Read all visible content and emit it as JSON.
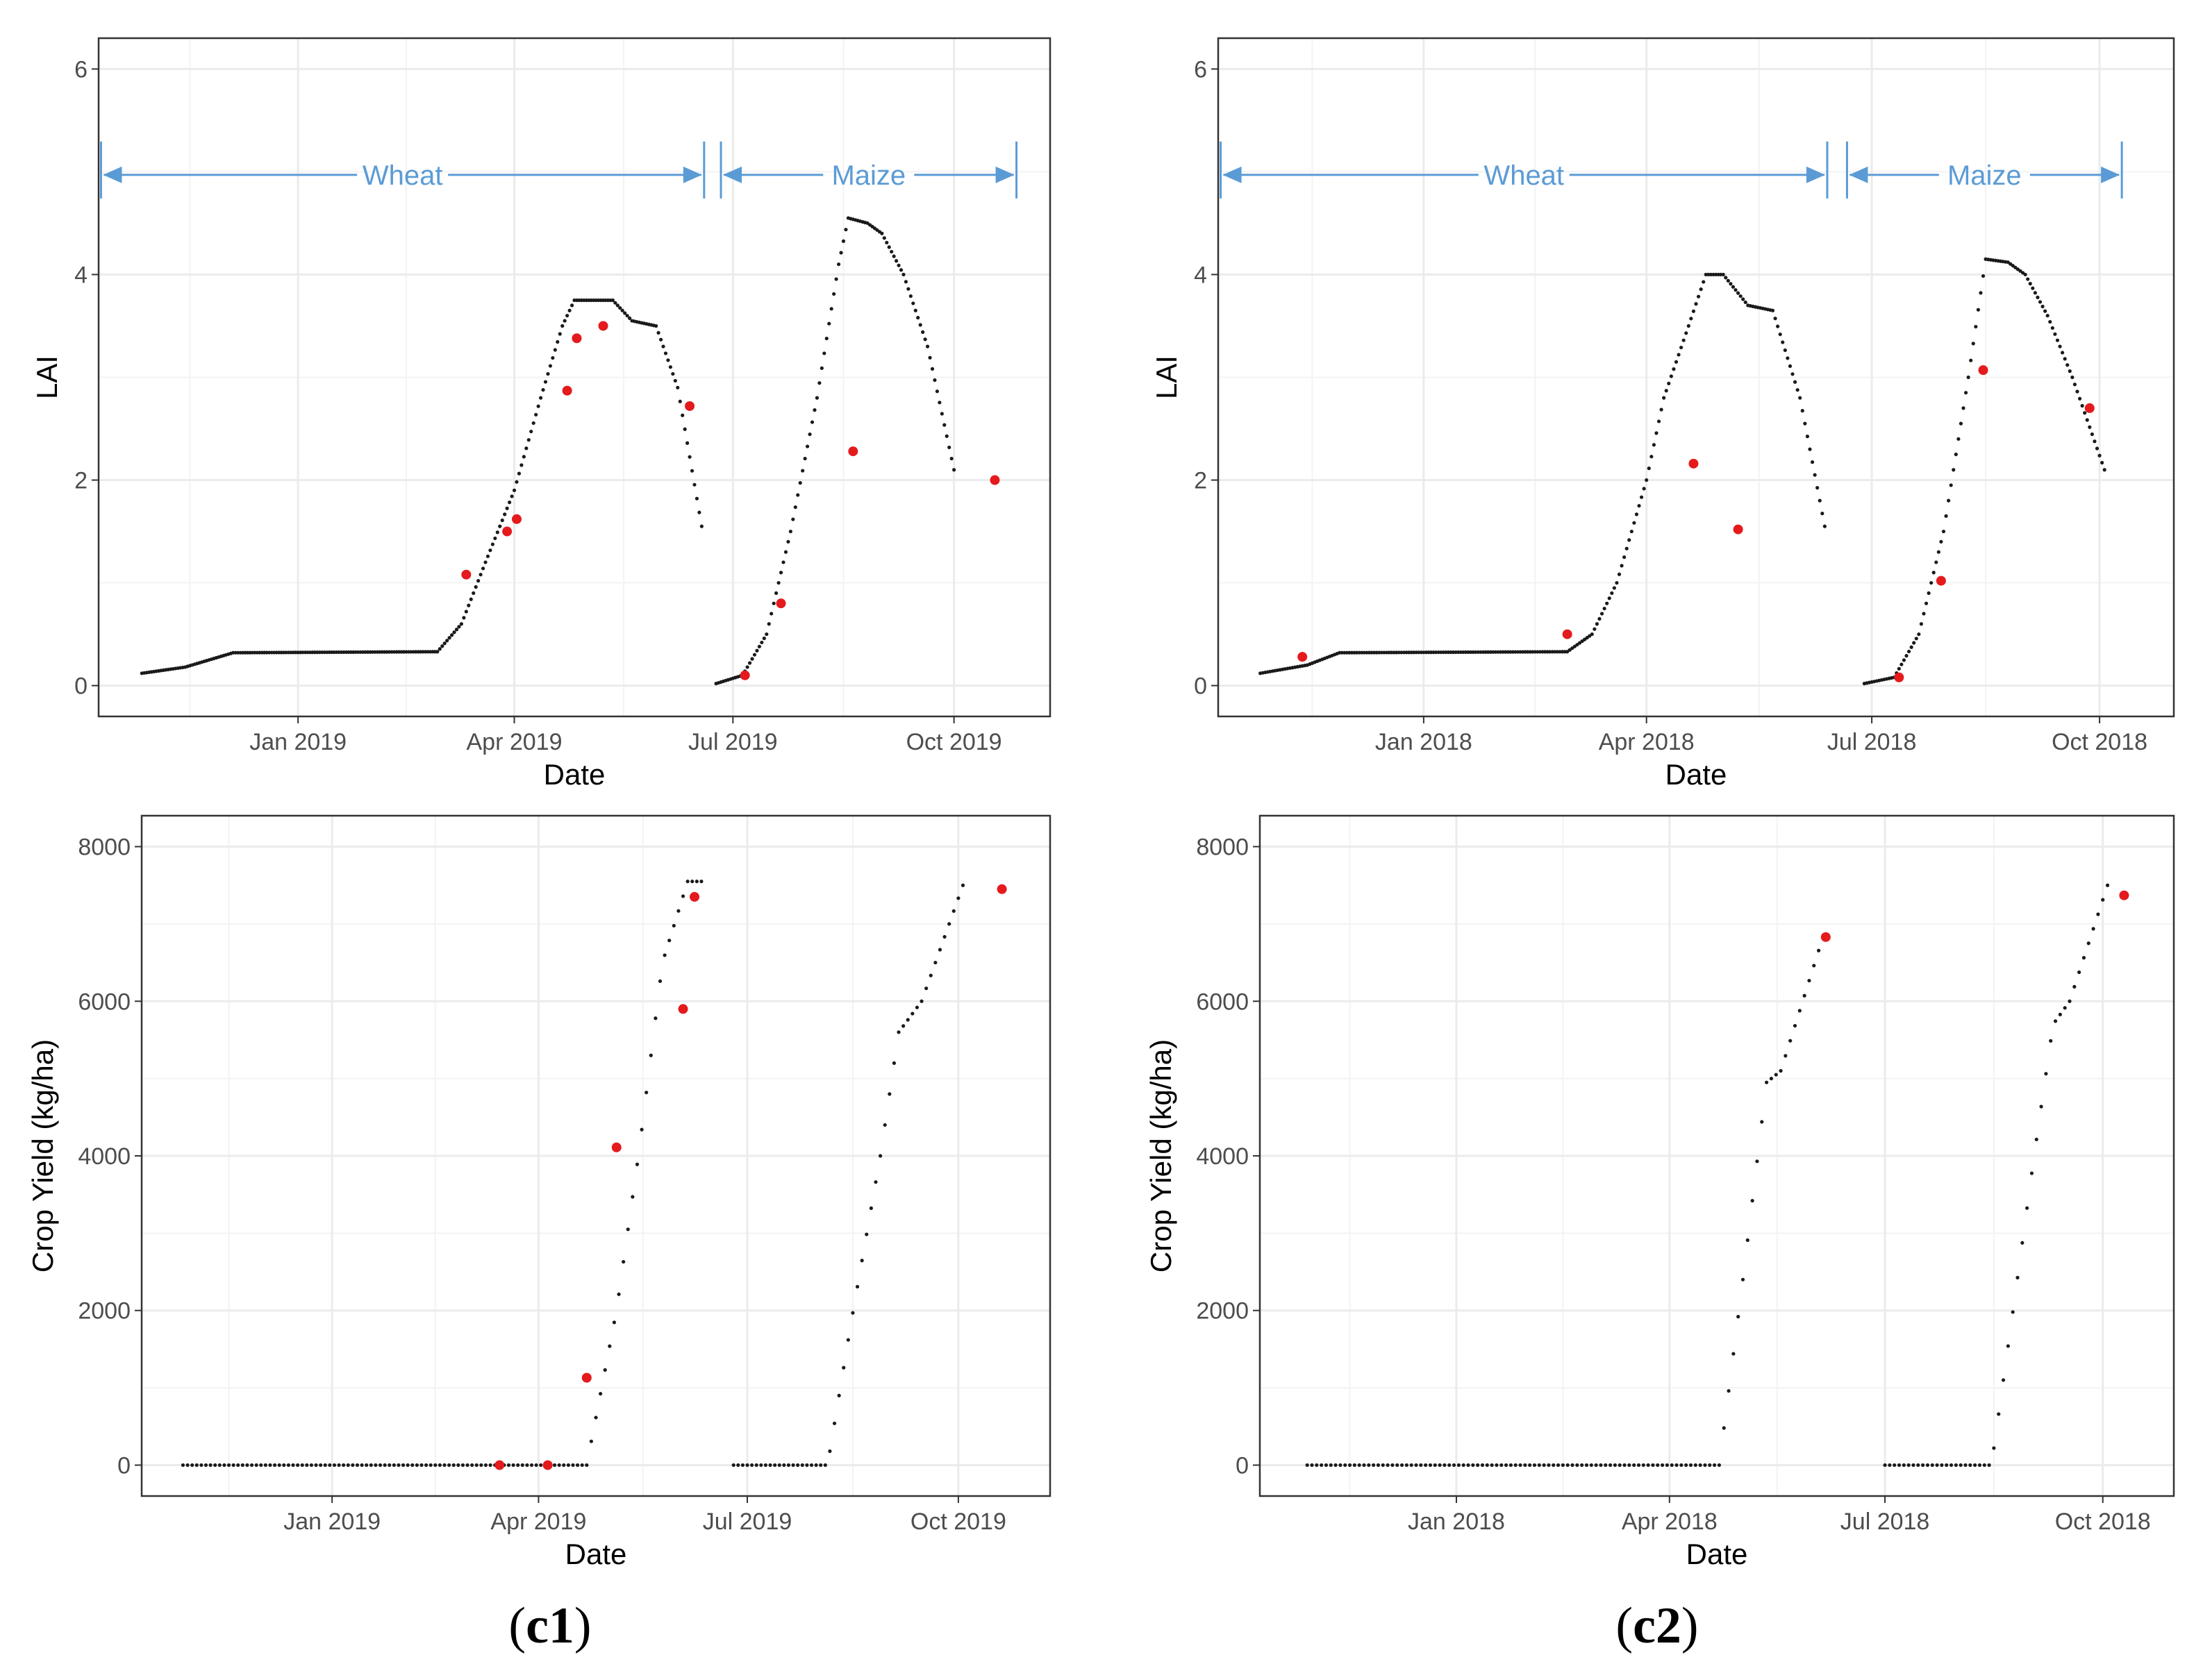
{
  "figure": {
    "captions": [
      {
        "open": "(",
        "label": "c1",
        "close": ")"
      },
      {
        "open": "(",
        "label": "c2",
        "close": ")"
      }
    ],
    "colors": {
      "sim": "#1a1a1a",
      "obs": "#e41a1c",
      "arrow": "#5b9bd5",
      "grid": "#ebebeb",
      "frame": "#333333",
      "axis_text": "#4d4d4d"
    }
  },
  "chart_data": [
    {
      "id": "lai-2019",
      "type": "scatter",
      "panel": "c1",
      "xlabel": "Date",
      "ylabel": "LAI",
      "ylim": [
        -0.3,
        6.3
      ],
      "yticks": [
        0,
        2,
        4,
        6
      ],
      "x_domain": [
        "2018-10-10",
        "2019-11-10"
      ],
      "xticks": [
        {
          "date": "2019-01-01",
          "label": "Jan 2019"
        },
        {
          "date": "2019-04-01",
          "label": "Apr 2019"
        },
        {
          "date": "2019-07-01",
          "label": "Jul 2019"
        },
        {
          "date": "2019-10-01",
          "label": "Oct 2019"
        }
      ],
      "seasons": [
        {
          "label": "Wheat",
          "start": "2018-10-11",
          "end": "2019-06-19",
          "level": 4.97
        },
        {
          "label": "Maize",
          "start": "2019-06-26",
          "end": "2019-10-27",
          "level": 4.97
        }
      ],
      "simulated": [
        {
          "start": "2018-10-28",
          "end": "2019-06-18",
          "step": 1,
          "points": [
            [
              "2018-10-28",
              0.12
            ],
            [
              "2018-11-15",
              0.18
            ],
            [
              "2018-12-05",
              0.32
            ],
            [
              "2019-02-28",
              0.33
            ],
            [
              "2019-03-10",
              0.6
            ],
            [
              "2019-03-20",
              1.2
            ],
            [
              "2019-04-01",
              1.9
            ],
            [
              "2019-04-12",
              2.8
            ],
            [
              "2019-04-21",
              3.5
            ],
            [
              "2019-04-26",
              3.75
            ],
            [
              "2019-05-12",
              3.75
            ],
            [
              "2019-05-20",
              3.55
            ],
            [
              "2019-05-30",
              3.5
            ],
            [
              "2019-06-08",
              2.9
            ],
            [
              "2019-06-18",
              1.55
            ]
          ]
        },
        {
          "start": "2019-06-24",
          "end": "2019-10-01",
          "step": 1,
          "points": [
            [
              "2019-06-24",
              0.02
            ],
            [
              "2019-07-05",
              0.1
            ],
            [
              "2019-07-15",
              0.5
            ],
            [
              "2019-07-25",
              1.5
            ],
            [
              "2019-08-05",
              2.8
            ],
            [
              "2019-08-14",
              4.1
            ],
            [
              "2019-08-18",
              4.55
            ],
            [
              "2019-08-26",
              4.5
            ],
            [
              "2019-09-01",
              4.4
            ],
            [
              "2019-09-10",
              4.0
            ],
            [
              "2019-09-20",
              3.3
            ],
            [
              "2019-10-01",
              2.1
            ]
          ]
        }
      ],
      "observed": [
        [
          "2019-03-12",
          1.08
        ],
        [
          "2019-03-29",
          1.5
        ],
        [
          "2019-04-02",
          1.62
        ],
        [
          "2019-04-23",
          2.87
        ],
        [
          "2019-04-27",
          3.38
        ],
        [
          "2019-05-08",
          3.5
        ],
        [
          "2019-06-13",
          2.72
        ],
        [
          "2019-07-06",
          0.1
        ],
        [
          "2019-07-21",
          0.8
        ],
        [
          "2019-08-20",
          2.28
        ],
        [
          "2019-10-18",
          2.0
        ]
      ]
    },
    {
      "id": "lai-2018",
      "type": "scatter",
      "panel": "c2",
      "xlabel": "Date",
      "ylabel": "LAI",
      "ylim": [
        -0.3,
        6.3
      ],
      "yticks": [
        0,
        2,
        4,
        6
      ],
      "x_domain": [
        "2017-10-10",
        "2018-10-31"
      ],
      "xticks": [
        {
          "date": "2018-01-01",
          "label": "Jan 2018"
        },
        {
          "date": "2018-04-01",
          "label": "Apr 2018"
        },
        {
          "date": "2018-07-01",
          "label": "Jul 2018"
        },
        {
          "date": "2018-10-01",
          "label": "Oct 2018"
        }
      ],
      "seasons": [
        {
          "label": "Wheat",
          "start": "2017-10-11",
          "end": "2018-06-13",
          "level": 4.97
        },
        {
          "label": "Maize",
          "start": "2018-06-21",
          "end": "2018-10-10",
          "level": 4.97
        }
      ],
      "simulated": [
        {
          "start": "2017-10-27",
          "end": "2018-06-12",
          "step": 1,
          "points": [
            [
              "2017-10-27",
              0.12
            ],
            [
              "2017-11-15",
              0.2
            ],
            [
              "2017-11-28",
              0.32
            ],
            [
              "2018-02-28",
              0.33
            ],
            [
              "2018-03-10",
              0.5
            ],
            [
              "2018-03-20",
              1.0
            ],
            [
              "2018-04-01",
              2.0
            ],
            [
              "2018-04-08",
              2.8
            ],
            [
              "2018-04-18",
              3.5
            ],
            [
              "2018-04-25",
              4.0
            ],
            [
              "2018-05-02",
              4.0
            ],
            [
              "2018-05-12",
              3.7
            ],
            [
              "2018-05-22",
              3.65
            ],
            [
              "2018-06-02",
              2.8
            ],
            [
              "2018-06-12",
              1.55
            ]
          ]
        },
        {
          "start": "2018-06-28",
          "end": "2018-10-03",
          "step": 1,
          "points": [
            [
              "2018-06-28",
              0.02
            ],
            [
              "2018-07-10",
              0.08
            ],
            [
              "2018-07-20",
              0.5
            ],
            [
              "2018-07-30",
              1.5
            ],
            [
              "2018-08-09",
              3.0
            ],
            [
              "2018-08-16",
              4.15
            ],
            [
              "2018-08-25",
              4.12
            ],
            [
              "2018-09-01",
              4.0
            ],
            [
              "2018-09-10",
              3.6
            ],
            [
              "2018-09-20",
              3.0
            ],
            [
              "2018-10-03",
              2.1
            ]
          ]
        }
      ],
      "observed": [
        [
          "2017-11-13",
          0.28
        ],
        [
          "2018-02-28",
          0.5
        ],
        [
          "2018-04-20",
          2.16
        ],
        [
          "2018-05-08",
          1.52
        ],
        [
          "2018-07-12",
          0.08
        ],
        [
          "2018-07-29",
          1.02
        ],
        [
          "2018-08-15",
          3.07
        ],
        [
          "2018-09-27",
          2.7
        ]
      ]
    },
    {
      "id": "yield-2019",
      "type": "scatter",
      "panel": "c1",
      "xlabel": "Date",
      "ylabel": "Crop Yield (kg/ha)",
      "ylim": [
        -400,
        8400
      ],
      "yticks": [
        0,
        2000,
        4000,
        6000,
        8000
      ],
      "x_domain": [
        "2018-10-10",
        "2019-11-10"
      ],
      "xticks": [
        {
          "date": "2019-01-01",
          "label": "Jan 2019"
        },
        {
          "date": "2019-04-01",
          "label": "Apr 2019"
        },
        {
          "date": "2019-07-01",
          "label": "Jul 2019"
        },
        {
          "date": "2019-10-01",
          "label": "Oct 2019"
        }
      ],
      "simulated": [
        {
          "start": "2018-10-28",
          "end": "2019-06-11",
          "step": 2,
          "points": [
            [
              "2018-10-28",
              0
            ],
            [
              "2019-04-22",
              0
            ],
            [
              "2019-05-05",
              2000
            ],
            [
              "2019-05-15",
              4100
            ],
            [
              "2019-05-25",
              6500
            ],
            [
              "2019-06-05",
              7550
            ],
            [
              "2019-06-11",
              7550
            ]
          ]
        },
        {
          "start": "2019-06-25",
          "end": "2019-10-03",
          "step": 2,
          "points": [
            [
              "2019-06-25",
              0
            ],
            [
              "2019-08-05",
              0
            ],
            [
              "2019-08-15",
              1800
            ],
            [
              "2019-08-28",
              4000
            ],
            [
              "2019-09-05",
              5600
            ],
            [
              "2019-09-15",
              6000
            ],
            [
              "2019-10-03",
              7500
            ]
          ]
        }
      ],
      "observed": [
        [
          "2019-03-15",
          0
        ],
        [
          "2019-04-05",
          0
        ],
        [
          "2019-04-22",
          1130
        ],
        [
          "2019-05-05",
          4110
        ],
        [
          "2019-06-03",
          5900
        ],
        [
          "2019-06-08",
          7350
        ],
        [
          "2019-10-20",
          7450
        ]
      ]
    },
    {
      "id": "yield-2018",
      "type": "scatter",
      "panel": "c2",
      "xlabel": "Date",
      "ylabel": "Crop Yield (kg/ha)",
      "ylim": [
        -400,
        8400
      ],
      "yticks": [
        0,
        2000,
        4000,
        6000,
        8000
      ],
      "x_domain": [
        "2017-10-10",
        "2018-10-31"
      ],
      "xticks": [
        {
          "date": "2018-01-01",
          "label": "Jan 2018"
        },
        {
          "date": "2018-04-01",
          "label": "Apr 2018"
        },
        {
          "date": "2018-07-01",
          "label": "Jul 2018"
        },
        {
          "date": "2018-10-01",
          "label": "Oct 2018"
        }
      ],
      "simulated": [
        {
          "start": "2017-10-30",
          "end": "2018-06-05",
          "step": 2,
          "points": [
            [
              "2017-10-30",
              0
            ],
            [
              "2018-04-22",
              0
            ],
            [
              "2018-05-02",
              2400
            ],
            [
              "2018-05-12",
              4950
            ],
            [
              "2018-05-18",
              5100
            ],
            [
              "2018-06-05",
              6850
            ]
          ]
        },
        {
          "start": "2018-07-01",
          "end": "2018-10-03",
          "step": 2,
          "points": [
            [
              "2018-07-01",
              0
            ],
            [
              "2018-08-15",
              0
            ],
            [
              "2018-08-25",
              2200
            ],
            [
              "2018-09-02",
              4000
            ],
            [
              "2018-09-10",
              5700
            ],
            [
              "2018-09-17",
              6000
            ],
            [
              "2018-10-03",
              7500
            ]
          ]
        }
      ],
      "observed": [
        [
          "2018-06-06",
          6830
        ],
        [
          "2018-10-10",
          7370
        ]
      ]
    }
  ]
}
